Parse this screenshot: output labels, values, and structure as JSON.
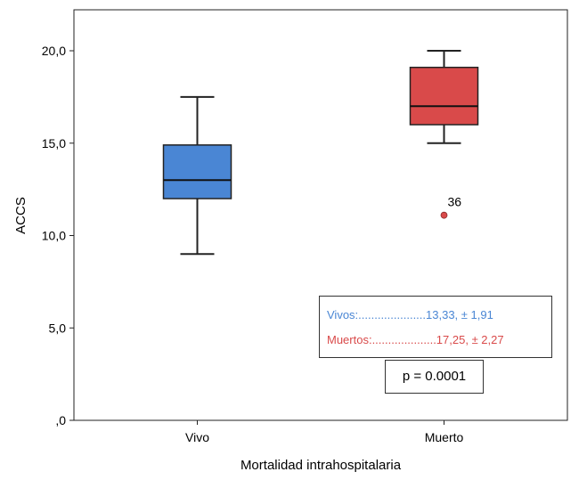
{
  "chart_data": {
    "type": "box",
    "xlabel": "Mortalidad intrahospitalaria",
    "ylabel": "ACCS",
    "ylim": [
      0,
      22
    ],
    "y_ticks": [
      {
        "value": 0,
        "label": ",0"
      },
      {
        "value": 5,
        "label": "5,0"
      },
      {
        "value": 10,
        "label": "10,0"
      },
      {
        "value": 15,
        "label": "15,0"
      },
      {
        "value": 20,
        "label": "20,0"
      }
    ],
    "categories": [
      "Vivo",
      "Muerto"
    ],
    "boxes": [
      {
        "category": "Vivo",
        "min": 9.0,
        "q1": 12.0,
        "median": 13.0,
        "q3": 14.9,
        "max": 17.5,
        "color": "#4A86D4",
        "outliers": []
      },
      {
        "category": "Muerto",
        "min": 15.0,
        "q1": 16.0,
        "median": 17.0,
        "q3": 19.1,
        "max": 20.0,
        "color": "#D94A4A",
        "outliers": [
          {
            "value": 11.1,
            "label": "36"
          }
        ]
      }
    ],
    "annotations": {
      "legend_vivos": "Vivos:.....................13,33, ± 1,91",
      "legend_muertos": "Muertos:....................17,25, ± 2,27",
      "legend_vivos_color": "#4A86D4",
      "legend_muertos_color": "#D94A4A",
      "pvalue": "p = 0.0001"
    }
  }
}
